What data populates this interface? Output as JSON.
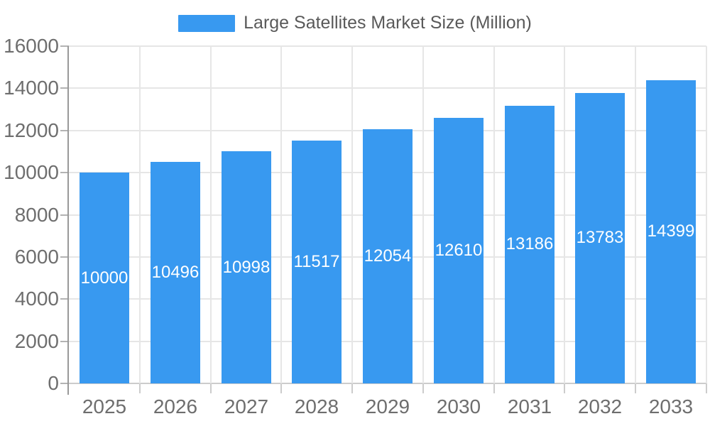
{
  "legend": {
    "label": "Large Satellites Market Size (Million)"
  },
  "colors": {
    "bar": "#3899F0",
    "bar_label": "#ffffff",
    "grid_line": "#e6e6e6",
    "axis_line": "#999999",
    "baseline": "#cccccc",
    "tick_mark": "#cccccc",
    "y_tick_mark": "#b3b3b3",
    "axis_text": "#6e6e6e",
    "legend_text": "#595959",
    "background": "#ffffff"
  },
  "chart_data": {
    "type": "bar",
    "title": "Large Satellites Market Size (Million)",
    "series_name": "Large Satellites Market Size (Million)",
    "categories": [
      "2025",
      "2026",
      "2027",
      "2028",
      "2029",
      "2030",
      "2031",
      "2032",
      "2033"
    ],
    "values": [
      10000,
      10496,
      10998,
      11517,
      12054,
      12610,
      13186,
      13783,
      14399
    ],
    "xlabel": "",
    "ylabel": "",
    "ylim": [
      0,
      16000
    ],
    "ytick_step": 2000,
    "yticks": [
      0,
      2000,
      4000,
      6000,
      8000,
      10000,
      12000,
      14000,
      16000
    ],
    "grid": true,
    "legend_position": "top-center",
    "value_labels": "inside-center-white"
  }
}
